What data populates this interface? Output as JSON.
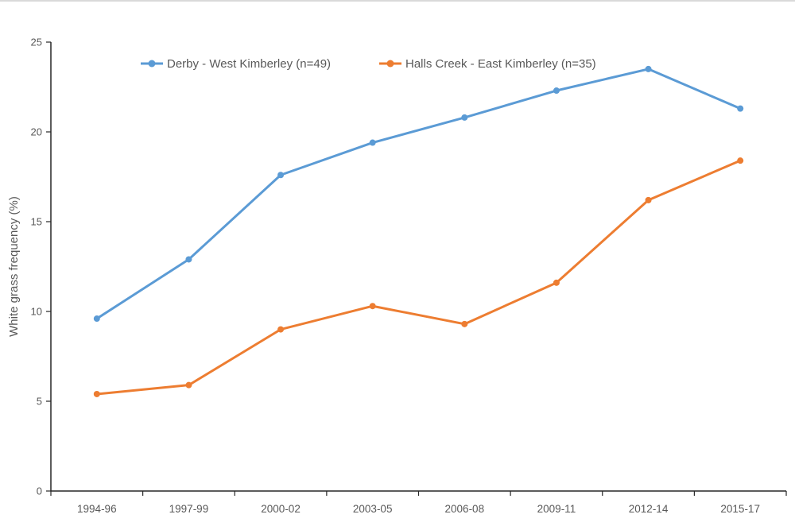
{
  "page": {
    "background": "#ffffff",
    "top_border_color": "#d9d9d9"
  },
  "chart_data": {
    "type": "line",
    "title": "",
    "categories": [
      "1994-96",
      "1997-99",
      "2000-02",
      "2003-05",
      "2006-08",
      "2009-11",
      "2012-14",
      "2015-17"
    ],
    "series": [
      {
        "name": "Derby - West Kimberley (n=49)",
        "color": "#5B9BD5",
        "values": [
          9.6,
          12.9,
          17.6,
          19.4,
          20.8,
          22.3,
          23.5,
          21.3
        ]
      },
      {
        "name": "Halls Creek - East Kimberley (n=35)",
        "color": "#ED7D31",
        "values": [
          5.4,
          5.9,
          9.0,
          10.3,
          9.3,
          11.6,
          16.2,
          18.4
        ]
      }
    ],
    "xlabel": "",
    "ylabel": "White grass frequency (%)",
    "ylim": [
      0,
      25
    ],
    "yticks": [
      0,
      5,
      10,
      15,
      20,
      25
    ],
    "grid": false,
    "legend_position": "top-inside",
    "marker": "circle",
    "axis_color": "#262626",
    "text_color": "#595959"
  }
}
